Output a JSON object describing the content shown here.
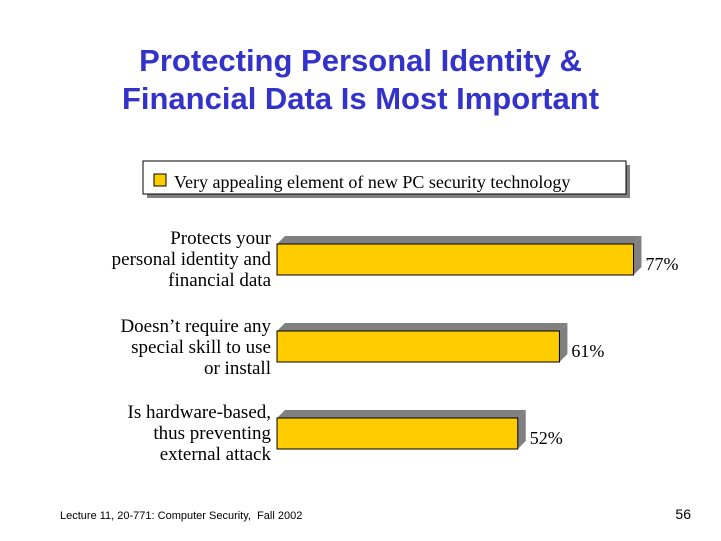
{
  "slide": {
    "title_line1": "Protecting Personal Identity &",
    "title_line2": "Financial Data Is Most Important",
    "footer_left": "Lecture 11, 20-771: Computer Security,  Fall 2002",
    "page_number": "56"
  },
  "colors": {
    "title": "#3333cc",
    "bar_fill": "#ffcc00",
    "bar_side": "#808080",
    "text": "#000000"
  },
  "chart_data": {
    "type": "bar",
    "orientation": "horizontal",
    "title": "",
    "legend": {
      "position": "top",
      "entries": [
        "Very appealing element of new PC security technology"
      ]
    },
    "series": [
      {
        "name": "Very appealing element of new PC security technology",
        "values": [
          77,
          61,
          52
        ]
      }
    ],
    "categories": [
      [
        "Protects your",
        "personal identity and",
        "financial data"
      ],
      [
        "Doesn’t require any",
        "special skill to use",
        "or install"
      ],
      [
        "Is hardware-based,",
        "thus preventing",
        "external attack"
      ]
    ],
    "data_labels": [
      "77%",
      "61%",
      "52%"
    ],
    "xlim": [
      0,
      100
    ],
    "xlabel": "",
    "ylabel": "",
    "grid": false
  }
}
